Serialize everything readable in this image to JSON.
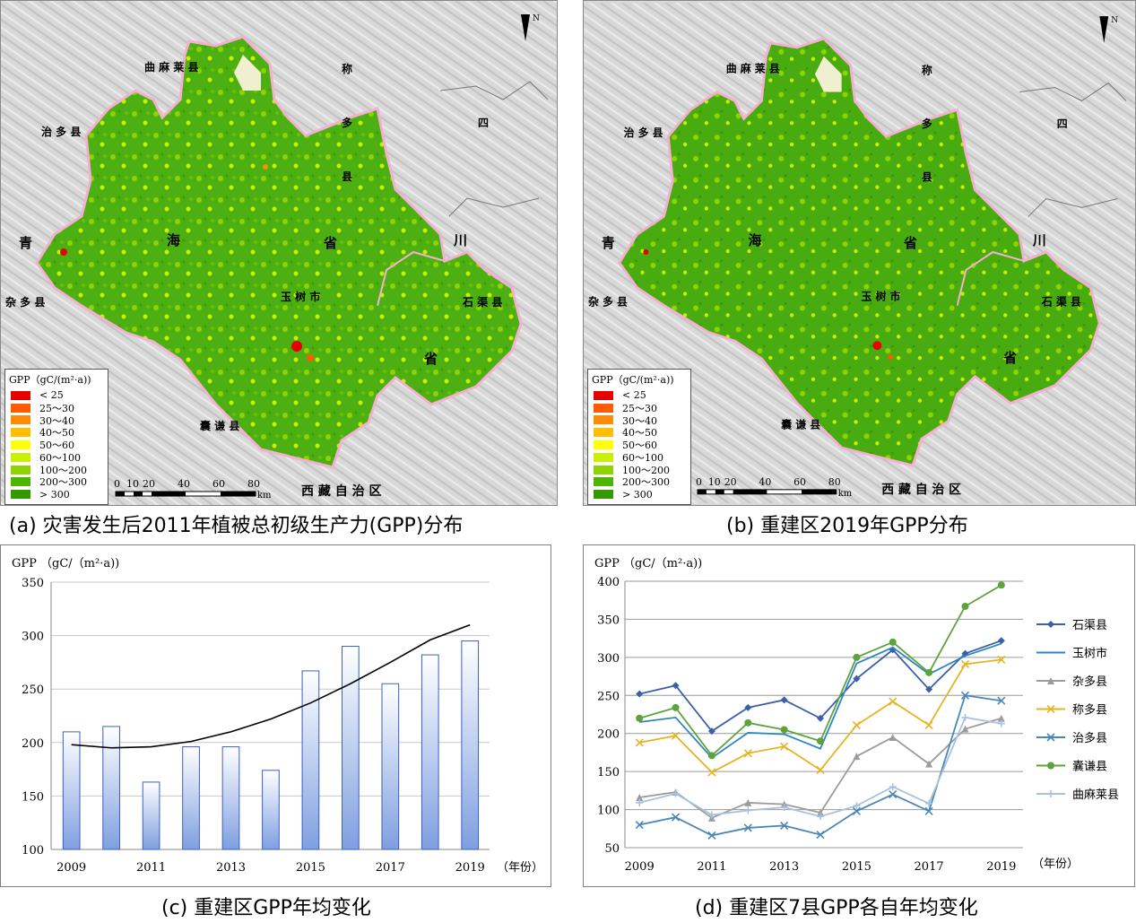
{
  "maps": [
    {
      "caption": "(a) 灾害发生后2011年植被总初级生产力(GPP)分布",
      "north": "N",
      "place_labels": [
        "曲 麻 莱 县",
        "称",
        "多",
        "县",
        "四",
        "治 多 县",
        "青",
        "海",
        "省",
        "川",
        "杂 多 县",
        "玉 树 市",
        "石 渠 县",
        "省",
        "囊 谦 县",
        "西 藏 自 治 区"
      ],
      "legend_title": "GPP（gC/(m²·a))",
      "legend": [
        {
          "label": "< 25",
          "color": "#e60000"
        },
        {
          "label": "25～30",
          "color": "#ff5a00"
        },
        {
          "label": "30～40",
          "color": "#ff8c00"
        },
        {
          "label": "40～50",
          "color": "#ffbf00"
        },
        {
          "label": "50～60",
          "color": "#ffff00"
        },
        {
          "label": "60～100",
          "color": "#c8f000"
        },
        {
          "label": "100～200",
          "color": "#8fd400"
        },
        {
          "label": "200～300",
          "color": "#4fb400"
        },
        {
          "label": "> 300",
          "color": "#339900"
        }
      ],
      "scale_ticks": [
        "0",
        "10",
        "20",
        "40",
        "60",
        "80"
      ],
      "scale_unit": "km"
    },
    {
      "caption": "(b) 重建区2019年GPP分布",
      "north": "N",
      "place_labels": [
        "曲 麻 莱 县",
        "称",
        "多",
        "县",
        "四",
        "治 多 县",
        "青",
        "海",
        "省",
        "川",
        "杂 多 县",
        "玉 树 市",
        "石 渠 县",
        "省",
        "囊 谦 县",
        "西 藏 自 治 区"
      ],
      "legend_title": "GPP（gC/(m²·a))",
      "legend": [
        {
          "label": "< 25",
          "color": "#e60000"
        },
        {
          "label": "25～30",
          "color": "#ff5a00"
        },
        {
          "label": "30～40",
          "color": "#ff8c00"
        },
        {
          "label": "40～50",
          "color": "#ffbf00"
        },
        {
          "label": "50～60",
          "color": "#ffff00"
        },
        {
          "label": "60～100",
          "color": "#c8f000"
        },
        {
          "label": "100～200",
          "color": "#8fd400"
        },
        {
          "label": "200～300",
          "color": "#4fb400"
        },
        {
          "label": "> 300",
          "color": "#339900"
        }
      ],
      "scale_ticks": [
        "0",
        "10",
        "20",
        "40",
        "60",
        "80"
      ],
      "scale_unit": "km"
    }
  ],
  "chart_data": [
    {
      "type": "bar",
      "caption": "(c) 重建区GPP年均变化",
      "ylabel": "GPP （gC/（m²·a))",
      "xlabel": "（年份）",
      "categories": [
        2009,
        2010,
        2011,
        2012,
        2013,
        2014,
        2015,
        2016,
        2017,
        2018,
        2019
      ],
      "x_tick_labels": [
        "2009",
        "2011",
        "2013",
        "2015",
        "2017",
        "2019"
      ],
      "values": [
        210,
        215,
        163,
        196,
        196,
        174,
        267,
        290,
        255,
        282,
        295
      ],
      "ylim": [
        100,
        350
      ],
      "y_ticks": [
        100,
        150,
        200,
        250,
        300,
        350
      ],
      "trend": "polynomial",
      "trend_points": [
        [
          2009,
          198
        ],
        [
          2010,
          195
        ],
        [
          2011,
          196
        ],
        [
          2012,
          201
        ],
        [
          2013,
          210
        ],
        [
          2014,
          222
        ],
        [
          2015,
          237
        ],
        [
          2016,
          255
        ],
        [
          2017,
          275
        ],
        [
          2018,
          296
        ],
        [
          2019,
          310
        ]
      ],
      "grid": true
    },
    {
      "type": "line",
      "caption": "(d) 重建区7县GPP各自年均变化",
      "ylabel": "GPP （gC/（m²·a))",
      "xlabel": "（年份）",
      "x": [
        2009,
        2010,
        2011,
        2012,
        2013,
        2014,
        2015,
        2016,
        2017,
        2018,
        2019
      ],
      "x_tick_labels": [
        "2009",
        "2011",
        "2013",
        "2015",
        "2017",
        "2019"
      ],
      "ylim": [
        50,
        400
      ],
      "y_ticks": [
        50,
        100,
        150,
        200,
        250,
        300,
        350,
        400
      ],
      "legend_placement": "right",
      "grid": true,
      "series": [
        {
          "name": "石渠县",
          "color": "#3b5fa8",
          "marker": "diamond",
          "values": [
            252,
            263,
            203,
            234,
            244,
            220,
            272,
            310,
            258,
            305,
            322
          ]
        },
        {
          "name": "玉树市",
          "color": "#2e86c1",
          "marker": "none",
          "values": [
            215,
            221,
            168,
            201,
            199,
            180,
            292,
            313,
            278,
            302,
            318
          ]
        },
        {
          "name": "杂多县",
          "color": "#9c9c9c",
          "marker": "triangle",
          "values": [
            116,
            123,
            89,
            109,
            107,
            96,
            170,
            195,
            160,
            206,
            220
          ]
        },
        {
          "name": "称多县",
          "color": "#e6b422",
          "marker": "x",
          "values": [
            188,
            197,
            149,
            174,
            183,
            152,
            211,
            242,
            211,
            291,
            297
          ]
        },
        {
          "name": "治多县",
          "color": "#4a86b8",
          "marker": "x",
          "values": [
            80,
            90,
            66,
            76,
            79,
            67,
            98,
            120,
            98,
            250,
            243
          ]
        },
        {
          "name": "囊谦县",
          "color": "#5ca33c",
          "marker": "circle",
          "values": [
            220,
            234,
            171,
            214,
            205,
            190,
            300,
            320,
            280,
            367,
            395
          ]
        },
        {
          "name": "曲麻莱县",
          "color": "#a9c1e0",
          "marker": "plus",
          "values": [
            109,
            121,
            93,
            99,
            103,
            91,
            105,
            130,
            108,
            221,
            213
          ]
        }
      ]
    }
  ]
}
